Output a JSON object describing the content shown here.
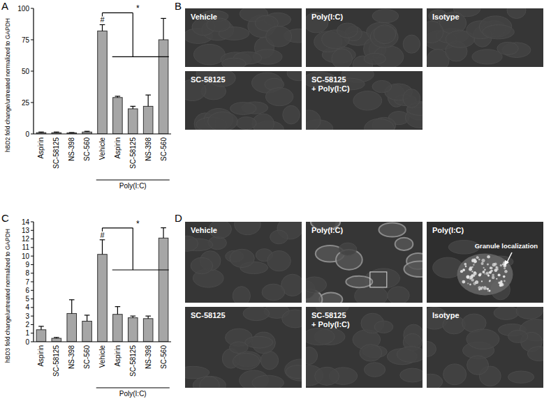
{
  "chart_data": [
    {
      "type": "bar",
      "title": "A",
      "y_label": "hBD2 fold change/untreated normalized to GAPDH",
      "categories": [
        "Aspirin",
        "SC-58125",
        "NS-398",
        "SC-560",
        "Vehicle",
        "Aspirin",
        "SC-58125",
        "NS-398",
        "SC-560"
      ],
      "values": [
        1,
        1,
        0.8,
        1.5,
        82,
        29,
        20,
        22,
        75
      ],
      "errors": [
        0.5,
        0.5,
        0.3,
        0.6,
        5,
        1,
        2,
        9,
        17
      ],
      "color": "#a6a6a6",
      "ylim": [
        0,
        100
      ],
      "yticks": [
        0,
        25,
        50,
        75,
        100
      ],
      "group_label": {
        "text": "Poly(I:C)",
        "from": 4,
        "to": 8
      },
      "annotations": [
        {
          "text": "#",
          "category": 4
        },
        {
          "text": "*",
          "from": 4,
          "to": [
            5,
            8
          ]
        }
      ]
    },
    {
      "type": "bar",
      "title": "C",
      "y_label": "hBD3 fold change/untreated normalized to GAPDH",
      "categories": [
        "Aspirin",
        "SC-58125",
        "NS-398",
        "SC-560",
        "Vehicle",
        "Aspirin",
        "SC-58125",
        "NS-398",
        "SC-560"
      ],
      "values": [
        1.4,
        0.4,
        3.3,
        2.4,
        10.2,
        3.2,
        2.8,
        2.7,
        12.1
      ],
      "errors": [
        0.4,
        0.1,
        1.6,
        0.7,
        1.7,
        0.9,
        0.2,
        0.3,
        1.2
      ],
      "color": "#a6a6a6",
      "ylim": [
        0,
        14
      ],
      "yticks": [
        0,
        1,
        2,
        3,
        4,
        5,
        6,
        7,
        8,
        9,
        10,
        11,
        12,
        13,
        14
      ],
      "group_label": {
        "text": "Poly(I:C)",
        "from": 4,
        "to": 8
      },
      "annotations": [
        {
          "text": "#",
          "category": 4
        },
        {
          "text": "*",
          "from": 4,
          "to": [
            5,
            8
          ]
        }
      ]
    }
  ],
  "images": [
    {
      "panel": "B",
      "tiles": [
        {
          "label": [
            "Vehicle"
          ]
        },
        {
          "label": [
            "Poly(I:C)"
          ]
        },
        {
          "label": [
            "Isotype"
          ]
        },
        {
          "label": [
            "SC-58125"
          ]
        },
        {
          "label": [
            "SC-58125",
            "+ Poly(I:C)"
          ]
        }
      ]
    },
    {
      "panel": "D",
      "tiles": [
        {
          "label": [
            "Vehicle"
          ]
        },
        {
          "label": [
            "Poly(I:C)"
          ]
        },
        {
          "label": [
            "Poly(I:C)"
          ],
          "callout": "Granule localization"
        },
        {
          "label": [
            "SC-58125"
          ]
        },
        {
          "label": [
            "SC-58125",
            "+ Poly(I:C)"
          ]
        },
        {
          "label": [
            "Isotype"
          ]
        }
      ]
    }
  ]
}
